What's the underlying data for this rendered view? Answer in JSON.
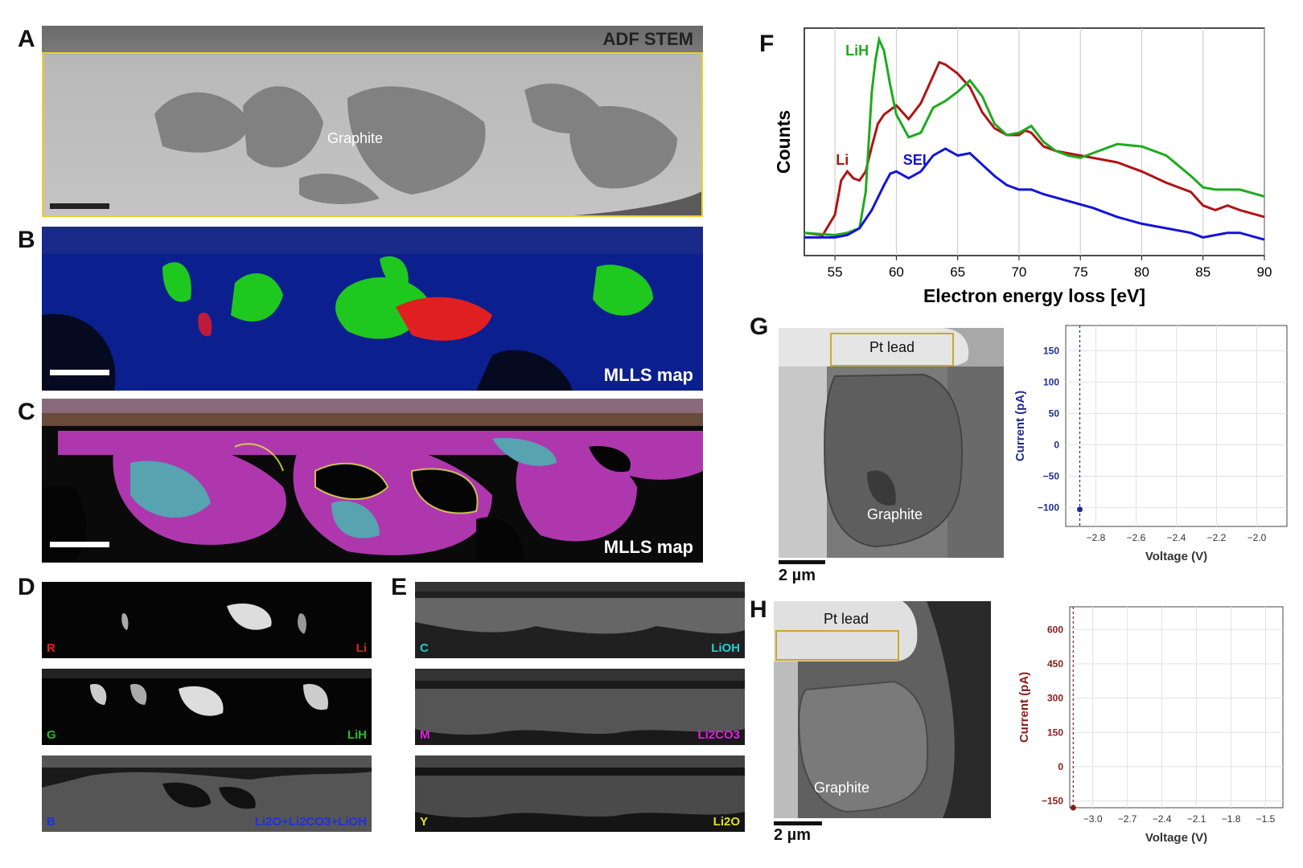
{
  "panels": {
    "A": {
      "label": "A",
      "title": "ADF STEM",
      "region_label": "Graphite"
    },
    "B": {
      "label": "B",
      "title": "MLLS map"
    },
    "C": {
      "label": "C",
      "title": "MLLS map"
    },
    "D": {
      "label": "D",
      "rows": [
        {
          "channel": "R",
          "phase": "Li",
          "color": "#e02020"
        },
        {
          "channel": "G",
          "phase": "LiH",
          "color": "#22c022"
        },
        {
          "channel": "B",
          "phase": "Li2O+Li2CO3+LiOH",
          "color": "#2030e0"
        }
      ]
    },
    "E": {
      "label": "E",
      "rows": [
        {
          "channel": "C",
          "phase": "LiOH",
          "color": "#19d0d0"
        },
        {
          "channel": "M",
          "phase": "Li2CO3",
          "color": "#e020e0"
        },
        {
          "channel": "Y",
          "phase": "Li2O",
          "color": "#e0e020"
        }
      ]
    },
    "F": {
      "label": "F"
    },
    "G": {
      "label": "G",
      "lead_label": "Pt lead",
      "sample_label": "Graphite",
      "scalebar": "2 µm"
    },
    "H": {
      "label": "H",
      "lead_label": "Pt lead",
      "sample_label": "Graphite",
      "scalebar": "2 µm"
    }
  },
  "chart_data": [
    {
      "id": "F",
      "type": "line",
      "xlabel": "Electron energy loss [eV]",
      "ylabel": "Counts",
      "xlim": [
        52.5,
        90
      ],
      "xticks": [
        55,
        60,
        65,
        70,
        75,
        80,
        85,
        90
      ],
      "grid": "vertical",
      "series": [
        {
          "name": "Li",
          "color": "#b01414",
          "x": [
            52.5,
            54,
            55,
            55.5,
            56,
            56.5,
            57,
            57.5,
            58,
            58.5,
            59,
            60,
            61,
            62,
            63,
            63.5,
            64,
            65,
            66,
            67,
            68,
            69,
            70,
            70.5,
            71,
            72,
            73,
            75,
            78,
            80,
            82,
            84,
            85,
            86,
            87,
            88,
            90
          ],
          "y": [
            0.1,
            0.09,
            0.18,
            0.33,
            0.37,
            0.34,
            0.33,
            0.37,
            0.48,
            0.58,
            0.62,
            0.66,
            0.6,
            0.67,
            0.79,
            0.85,
            0.84,
            0.8,
            0.74,
            0.63,
            0.56,
            0.53,
            0.53,
            0.55,
            0.54,
            0.48,
            0.46,
            0.44,
            0.41,
            0.37,
            0.32,
            0.28,
            0.22,
            0.2,
            0.22,
            0.2,
            0.17
          ]
        },
        {
          "name": "LiH",
          "color": "#1faa1f",
          "x": [
            52.5,
            55,
            56,
            57,
            57.5,
            58,
            58.3,
            58.6,
            59,
            59.5,
            60,
            61,
            62,
            63,
            64,
            65,
            66,
            67,
            68,
            69,
            70,
            71,
            72,
            73,
            74,
            75,
            76,
            78,
            80,
            82,
            84,
            85,
            86,
            88,
            90
          ],
          "y": [
            0.1,
            0.09,
            0.1,
            0.12,
            0.28,
            0.72,
            0.86,
            0.95,
            0.9,
            0.75,
            0.62,
            0.52,
            0.54,
            0.65,
            0.68,
            0.72,
            0.77,
            0.7,
            0.58,
            0.53,
            0.54,
            0.57,
            0.5,
            0.46,
            0.44,
            0.43,
            0.45,
            0.49,
            0.48,
            0.44,
            0.35,
            0.3,
            0.29,
            0.29,
            0.26
          ]
        },
        {
          "name": "SEI",
          "color": "#1414d8",
          "x": [
            52.5,
            55,
            56,
            57,
            58,
            59,
            59.5,
            60,
            61,
            62,
            63,
            64,
            65,
            66,
            67,
            68,
            69,
            70,
            71,
            72,
            74,
            76,
            78,
            80,
            82,
            84,
            85,
            86,
            87,
            88,
            90
          ],
          "y": [
            0.08,
            0.08,
            0.09,
            0.12,
            0.2,
            0.31,
            0.36,
            0.37,
            0.34,
            0.37,
            0.44,
            0.47,
            0.44,
            0.45,
            0.4,
            0.35,
            0.31,
            0.29,
            0.29,
            0.27,
            0.24,
            0.21,
            0.17,
            0.14,
            0.12,
            0.1,
            0.08,
            0.09,
            0.1,
            0.1,
            0.07
          ]
        }
      ]
    },
    {
      "id": "G",
      "type": "scatter",
      "xlabel": "Voltage (V)",
      "ylabel": "Current (pA)",
      "xlim": [
        -2.95,
        -1.85
      ],
      "ylim": [
        -130,
        190
      ],
      "xticks": [
        -2.8,
        -2.6,
        -2.4,
        -2.2,
        -2.0
      ],
      "xtick_labels": [
        "−2.8",
        "−2.6",
        "−2.4",
        "−2.2",
        "−2.0"
      ],
      "yticks": [
        -100,
        -50,
        0,
        50,
        100,
        150
      ],
      "ytick_labels": [
        "−100",
        "−50",
        "0",
        "50",
        "100",
        "150"
      ],
      "color": "#1f2d8c",
      "points": [
        {
          "x": -2.88,
          "y": -103
        }
      ],
      "vline": -2.88,
      "grid": true
    },
    {
      "id": "H",
      "type": "scatter",
      "xlabel": "Voltage (V)",
      "ylabel": "Current (pA)",
      "xlim": [
        -3.2,
        -1.35
      ],
      "ylim": [
        -180,
        700
      ],
      "xticks": [
        -3.0,
        -2.7,
        -2.4,
        -2.1,
        -1.8,
        -1.5
      ],
      "xtick_labels": [
        "−3.0",
        "−2.7",
        "−2.4",
        "−2.1",
        "−1.8",
        "−1.5"
      ],
      "yticks": [
        -150,
        0,
        150,
        300,
        450,
        600
      ],
      "ytick_labels": [
        "−150",
        "0",
        "150",
        "300",
        "450",
        "600"
      ],
      "color": "#8b1a1a",
      "points": [
        {
          "x": -3.17,
          "y": -180
        }
      ],
      "vline": -3.17,
      "grid": true
    }
  ]
}
